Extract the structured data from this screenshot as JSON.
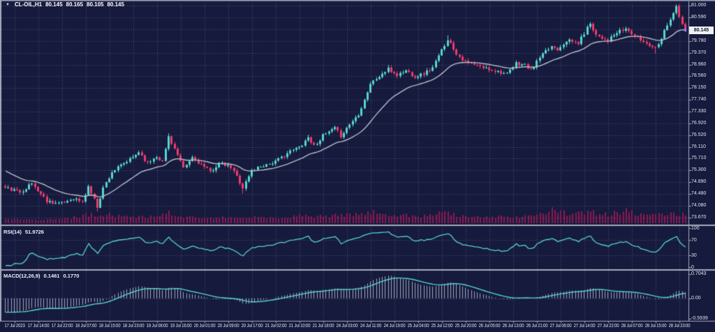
{
  "header": {
    "symbol_period": "CL-OIL,H1",
    "open": "80.145",
    "high": "80.165",
    "low": "80.105",
    "close": "80.145"
  },
  "icons": {
    "collapse": "▼",
    "last_price_marker": "left-arrow"
  },
  "colors": {
    "background": "#161a3d",
    "grid": "rgba(122,130,175,0.5)",
    "bull": "#55d7cc",
    "bear": "#ef3a6c",
    "volume": "#8c1950",
    "ma_line": "#b9bec8",
    "rsi_line": "#55d7cc",
    "macd_hist": "rgba(186,192,212,0.85)",
    "macd_signal": "#55d7cc",
    "separator": "#a6acbe",
    "axis_text": "#dfe3f0",
    "price_badge_bg": "#eef0f4",
    "price_badge_text": "#12142e",
    "marker": "#8678e9"
  },
  "price_axis": {
    "current": {
      "label": "80.145",
      "value": 80.145
    },
    "ticks": [
      {
        "label": "81.000",
        "value": 81.0
      },
      {
        "label": "80.590",
        "value": 80.59
      },
      {
        "label": "80.180",
        "value": 80.18
      },
      {
        "label": "79.780",
        "value": 79.78
      },
      {
        "label": "79.370",
        "value": 79.37
      },
      {
        "label": "78.960",
        "value": 78.96
      },
      {
        "label": "78.560",
        "value": 78.56
      },
      {
        "label": "78.150",
        "value": 78.15
      },
      {
        "label": "77.740",
        "value": 77.74
      },
      {
        "label": "77.330",
        "value": 77.33
      },
      {
        "label": "76.920",
        "value": 76.92
      },
      {
        "label": "76.520",
        "value": 76.52
      },
      {
        "label": "76.110",
        "value": 76.11
      },
      {
        "label": "75.710",
        "value": 75.71
      },
      {
        "label": "75.300",
        "value": 75.3
      },
      {
        "label": "74.890",
        "value": 74.89
      },
      {
        "label": "74.480",
        "value": 74.48
      },
      {
        "label": "74.080",
        "value": 74.08
      },
      {
        "label": "73.670",
        "value": 73.67
      }
    ]
  },
  "time_axis": {
    "labels": [
      "17 Jul 2023",
      "17 Jul 14:00",
      "17 Jul 22:00",
      "18 Jul 07:00",
      "18 Jul 15:00",
      "18 Jul 23:00",
      "19 Jul 08:00",
      "19 Jul 16:00",
      "20 Jul 01:00",
      "20 Jul 09:00",
      "20 Jul 17:00",
      "21 Jul 02:00",
      "21 Jul 10:00",
      "21 Jul 18:00",
      "24 Jul 03:00",
      "24 Jul 11:00",
      "24 Jul 19:00",
      "25 Jul 04:00",
      "25 Jul 12:00",
      "25 Jul 20:00",
      "26 Jul 05:00",
      "26 Jul 13:00",
      "26 Jul 21:00",
      "27 Jul 06:00",
      "27 Jul 14:00",
      "27 Jul 22:00",
      "28 Jul 07:00",
      "28 Jul 15:00",
      "28 Jul 23:00"
    ]
  },
  "rsi_panel": {
    "label": "RSI(14)",
    "value": "51.9726",
    "ticks": [
      {
        "label": "100",
        "value": 100
      },
      {
        "label": "70",
        "value": 70
      },
      {
        "label": "30",
        "value": 30
      },
      {
        "label": "0",
        "value": 0
      }
    ],
    "levels": [
      70,
      30
    ]
  },
  "macd_panel": {
    "label": "MACD(12,26,9)",
    "macd_value": "0.1461",
    "signal_value": "0.1770",
    "ticks": [
      {
        "label": "0.7043",
        "value": 0.7043
      },
      {
        "label": "0.00",
        "value": 0.0
      },
      {
        "label": "-0.5939",
        "value": -0.5939
      }
    ]
  },
  "chart_data": {
    "type": "candlestick",
    "symbol": "CL-OIL",
    "timeframe": "H1",
    "title": "CL-OIL,H1 80.145 80.165 80.105 80.145",
    "last_ohlc": {
      "open": 80.145,
      "high": 80.165,
      "low": 80.105,
      "close": 80.145
    },
    "bars_visible": 230,
    "price_axis_range": [
      73.67,
      81.0
    ],
    "grid": true,
    "pre_anchors": [
      [
        -40,
        77.2
      ],
      [
        -20,
        76.0
      ],
      [
        -8,
        75.1
      ]
    ],
    "close_anchors": [
      [
        0,
        74.7
      ],
      [
        5,
        74.55
      ],
      [
        9,
        74.85
      ],
      [
        14,
        74.25
      ],
      [
        19,
        74.15
      ],
      [
        23,
        74.35
      ],
      [
        26,
        74.2
      ],
      [
        28,
        74.75
      ],
      [
        31,
        74.05
      ],
      [
        33,
        74.7
      ],
      [
        36,
        75.25
      ],
      [
        43,
        75.75
      ],
      [
        45,
        75.95
      ],
      [
        48,
        75.55
      ],
      [
        51,
        75.8
      ],
      [
        53,
        75.6
      ],
      [
        55,
        76.48
      ],
      [
        57,
        76.05
      ],
      [
        60,
        75.35
      ],
      [
        63,
        75.75
      ],
      [
        66,
        75.5
      ],
      [
        69,
        75.25
      ],
      [
        72,
        75.55
      ],
      [
        76,
        75.4
      ],
      [
        78,
        75.1
      ],
      [
        80,
        74.7
      ],
      [
        83,
        75.3
      ],
      [
        86,
        75.45
      ],
      [
        91,
        75.6
      ],
      [
        95,
        75.9
      ],
      [
        99,
        76.1
      ],
      [
        102,
        76.45
      ],
      [
        104,
        76.15
      ],
      [
        107,
        76.5
      ],
      [
        111,
        76.75
      ],
      [
        113,
        76.5
      ],
      [
        116,
        76.9
      ],
      [
        119,
        77.25
      ],
      [
        121,
        77.75
      ],
      [
        123,
        78.3
      ],
      [
        126,
        78.55
      ],
      [
        129,
        78.8
      ],
      [
        132,
        78.6
      ],
      [
        135,
        78.75
      ],
      [
        138,
        78.55
      ],
      [
        141,
        78.65
      ],
      [
        144,
        78.85
      ],
      [
        147,
        79.45
      ],
      [
        149,
        79.85
      ],
      [
        152,
        79.35
      ],
      [
        155,
        79.05
      ],
      [
        158,
        78.95
      ],
      [
        161,
        78.85
      ],
      [
        164,
        78.78
      ],
      [
        167,
        78.7
      ],
      [
        169,
        78.62
      ],
      [
        172,
        79.0
      ],
      [
        175,
        78.95
      ],
      [
        177,
        78.75
      ],
      [
        180,
        79.2
      ],
      [
        184,
        79.6
      ],
      [
        186,
        79.5
      ],
      [
        189,
        79.8
      ],
      [
        193,
        79.7
      ],
      [
        197,
        80.4
      ],
      [
        199,
        80.0
      ],
      [
        203,
        79.8
      ],
      [
        206,
        80.05
      ],
      [
        209,
        80.2
      ],
      [
        212,
        79.95
      ],
      [
        215,
        79.75
      ],
      [
        219,
        79.55
      ],
      [
        221,
        79.9
      ],
      [
        223,
        80.35
      ],
      [
        225,
        80.75
      ],
      [
        226,
        80.95
      ],
      [
        227,
        80.6
      ],
      [
        228,
        80.35
      ],
      [
        229,
        80.145
      ]
    ],
    "wick_overrides": [
      [
        31,
        "low",
        73.88
      ],
      [
        55,
        "high",
        76.58
      ],
      [
        80,
        "low",
        74.5
      ],
      [
        149,
        "high",
        79.97
      ],
      [
        219,
        "low",
        79.33
      ],
      [
        226,
        "high",
        80.99
      ]
    ],
    "volume_envelope": [
      [
        0,
        0.18
      ],
      [
        10,
        0.15
      ],
      [
        20,
        0.22
      ],
      [
        28,
        0.45
      ],
      [
        33,
        0.5
      ],
      [
        40,
        0.35
      ],
      [
        48,
        0.3
      ],
      [
        55,
        0.55
      ],
      [
        60,
        0.35
      ],
      [
        70,
        0.25
      ],
      [
        80,
        0.32
      ],
      [
        90,
        0.25
      ],
      [
        100,
        0.4
      ],
      [
        108,
        0.35
      ],
      [
        116,
        0.5
      ],
      [
        123,
        0.6
      ],
      [
        130,
        0.45
      ],
      [
        140,
        0.35
      ],
      [
        147,
        0.55
      ],
      [
        155,
        0.35
      ],
      [
        163,
        0.3
      ],
      [
        170,
        0.35
      ],
      [
        178,
        0.32
      ],
      [
        184,
        0.8
      ],
      [
        190,
        0.5
      ],
      [
        197,
        0.6
      ],
      [
        203,
        0.45
      ],
      [
        209,
        0.7
      ],
      [
        215,
        0.4
      ],
      [
        222,
        0.5
      ],
      [
        229,
        0.45
      ]
    ],
    "noise_seed": 11,
    "noise_amp": 0.06,
    "indicators": {
      "ma_period": 21,
      "rsi": {
        "period": 14,
        "last": 51.9726,
        "levels": [
          70,
          30
        ],
        "range": [
          0,
          100
        ]
      },
      "macd": {
        "fast": 12,
        "slow": 26,
        "signal": 9,
        "last_macd": 0.1461,
        "last_signal": 0.177,
        "axis": [
          0.7043,
          0.0,
          -0.5939
        ]
      }
    }
  }
}
